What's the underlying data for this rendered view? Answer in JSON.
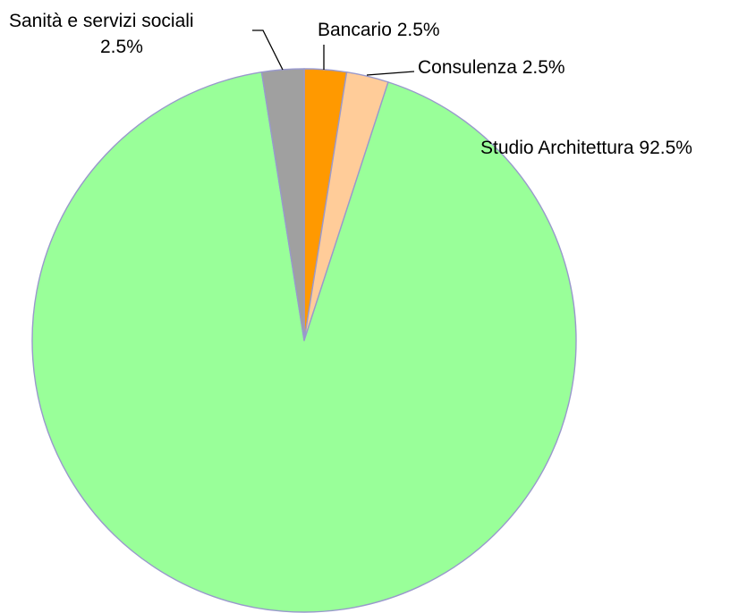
{
  "chart_data": {
    "type": "pie",
    "start_angle_deg": 0,
    "direction": "clockwise",
    "slices": [
      {
        "name": "Bancario",
        "value": 2.5,
        "color": "#ff9900",
        "label_line1": "Bancario 2.5%"
      },
      {
        "name": "Consulenza",
        "value": 2.5,
        "color": "#ffcc99",
        "label_line1": "Consulenza 2.5%"
      },
      {
        "name": "Studio Architettura",
        "value": 92.5,
        "color": "#99ff99",
        "label_line1": "Studio Architettura 92.5%"
      },
      {
        "name": "Sanità e servizi sociali",
        "value": 2.5,
        "color": "#a0a0a0",
        "label_line1": "Sanità e servizi sociali",
        "label_line2": "2.5%"
      }
    ],
    "border_color": "#9999cc"
  }
}
